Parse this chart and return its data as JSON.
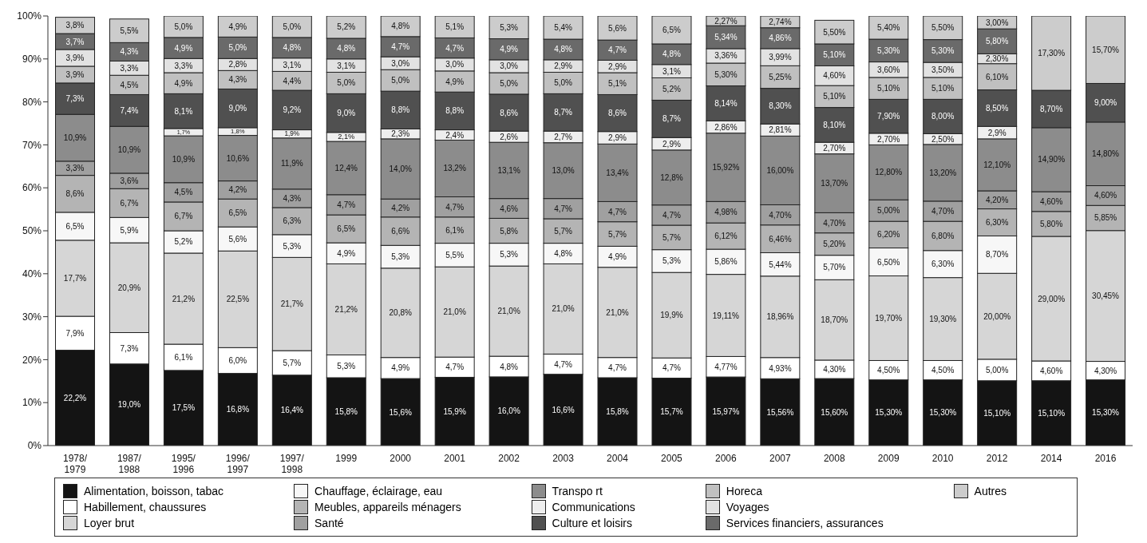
{
  "chart_data": {
    "type": "bar",
    "stacked": true,
    "legend": "bottom",
    "grid": false,
    "categories": [
      "1978/1979",
      "1987/1988",
      "1995/1996",
      "1996/1997",
      "1997/1998",
      "1999",
      "2000",
      "2001",
      "2002",
      "2003",
      "2004",
      "2005",
      "2006",
      "2007",
      "2008",
      "2009",
      "2010",
      "2012",
      "2014",
      "2016"
    ],
    "ylim": [
      0,
      100
    ],
    "yticks": [
      {
        "value": 0,
        "label": "0%"
      },
      {
        "value": 10,
        "label": "10%"
      },
      {
        "value": 20,
        "label": "20%"
      },
      {
        "value": 30,
        "label": "30%"
      },
      {
        "value": 40,
        "label": "40%"
      },
      {
        "value": 50,
        "label": "50%"
      },
      {
        "value": 60,
        "label": "60%"
      },
      {
        "value": 70,
        "label": "70%"
      },
      {
        "value": 80,
        "label": "80%"
      },
      {
        "value": 90,
        "label": "90%"
      },
      {
        "value": 100,
        "label": "100%"
      }
    ],
    "series": [
      {
        "name": "Alimentation, boisson, tabac",
        "color": "#141414",
        "values": [
          22.2,
          19.0,
          17.5,
          16.8,
          16.4,
          15.8,
          15.6,
          15.9,
          16.0,
          16.6,
          15.8,
          15.7,
          15.97,
          15.56,
          15.6,
          15.3,
          15.3,
          15.1,
          15.1,
          15.3
        ],
        "value_labels": [
          "22,2%",
          "19,0%",
          "17,5%",
          "16,8%",
          "16,4%",
          "15,8%",
          "15,6%",
          "15,9%",
          "16,0%",
          "16,6%",
          "15,8%",
          "15,7%",
          "15,97%",
          "15,56%",
          "15,60%",
          "15,30%",
          "15,30%",
          "15,10%",
          "15,10%",
          "15,30%"
        ]
      },
      {
        "name": "Habillement, chaussures",
        "color": "#ffffff",
        "values": [
          7.9,
          7.3,
          6.1,
          6.0,
          5.7,
          5.3,
          4.9,
          4.7,
          4.8,
          4.7,
          4.7,
          4.7,
          4.77,
          4.93,
          4.3,
          4.5,
          4.5,
          5.0,
          4.6,
          4.3
        ],
        "value_labels": [
          "7,9%",
          "7,3%",
          "6,1%",
          "6,0%",
          "5,7%",
          "5,3%",
          "4,9%",
          "4,7%",
          "4,8%",
          "4,7%",
          "4,7%",
          "4,7%",
          "4,77%",
          "4,93%",
          "4,30%",
          "4,50%",
          "4,50%",
          "5,00%",
          "4,60%",
          "4,30%"
        ]
      },
      {
        "name": "Loyer brut",
        "color": "#d6d6d6",
        "values": [
          17.7,
          20.9,
          21.2,
          22.5,
          21.7,
          21.2,
          20.8,
          21.0,
          21.0,
          21.0,
          21.0,
          19.9,
          19.11,
          18.96,
          18.7,
          19.7,
          19.3,
          20.0,
          29.0,
          30.45
        ],
        "value_labels": [
          "17,7%",
          "20,9%",
          "21,2%",
          "22,5%",
          "21,7%",
          "21,2%",
          "20,8%",
          "21,0%",
          "21,0%",
          "21,0%",
          "21,0%",
          "19,9%",
          "19,11%",
          "18,96%",
          "18,70%",
          "19,70%",
          "19,30%",
          "20,00%",
          "29,00%",
          "30,45%"
        ]
      },
      {
        "name": "Chauffage, éclairage, eau",
        "color": "#f7f7f7",
        "values": [
          6.5,
          5.9,
          5.2,
          5.6,
          5.3,
          4.9,
          5.3,
          5.5,
          5.3,
          4.8,
          4.9,
          5.3,
          5.86,
          5.44,
          5.7,
          6.5,
          6.3,
          8.7,
          null,
          null
        ],
        "value_labels": [
          "6,5%",
          "5,9%",
          "5,2%",
          "5,6%",
          "5,3%",
          "4,9%",
          "5,3%",
          "5,5%",
          "5,3%",
          "4,8%",
          "4,9%",
          "5,3%",
          "5,86%",
          "5,44%",
          "5,70%",
          "6,50%",
          "6,30%",
          "8,70%",
          null,
          null
        ]
      },
      {
        "name": "Meubles, appareils ménagers",
        "color": "#b4b4b4",
        "values": [
          8.6,
          6.7,
          6.7,
          6.5,
          6.3,
          6.5,
          6.6,
          6.1,
          5.8,
          5.7,
          5.7,
          5.7,
          6.12,
          6.46,
          5.2,
          6.2,
          6.8,
          6.3,
          5.8,
          5.85
        ],
        "value_labels": [
          "8,6%",
          "6,7%",
          "6,7%",
          "6,5%",
          "6,3%",
          "6,5%",
          "6,6%",
          "6,1%",
          "5,8%",
          "5,7%",
          "5,7%",
          "5,7%",
          "6,12%",
          "6,46%",
          "5,20%",
          "6,20%",
          "6,80%",
          "6,30%",
          "5,80%",
          "5,85%"
        ]
      },
      {
        "name": "Santé",
        "color": "#a0a0a0",
        "values": [
          3.3,
          3.6,
          4.5,
          4.2,
          4.3,
          4.7,
          4.2,
          4.7,
          4.6,
          4.7,
          4.7,
          4.7,
          4.98,
          4.7,
          4.7,
          5.0,
          4.7,
          4.2,
          4.6,
          4.6
        ],
        "value_labels": [
          "3,3%",
          "3,6%",
          "4,5%",
          "4,2%",
          "4,3%",
          "4,7%",
          "4,2%",
          "4,7%",
          "4,6%",
          "4,7%",
          "4,7%",
          "4,7%",
          "4,98%",
          "4,70%",
          "4,70%",
          "5,00%",
          "4,70%",
          "4,20%",
          "4,60%",
          "4,60%"
        ]
      },
      {
        "name": "Transpo rt",
        "color": "#8c8c8c",
        "values": [
          10.9,
          10.9,
          10.9,
          10.6,
          11.9,
          12.4,
          14.0,
          13.2,
          13.1,
          13.0,
          13.4,
          12.8,
          15.92,
          16.0,
          13.7,
          12.8,
          13.2,
          12.1,
          14.9,
          14.8
        ],
        "value_labels": [
          "10,9%",
          "10,9%",
          "10,9%",
          "10,6%",
          "11,9%",
          "12,4%",
          "14,0%",
          "13,2%",
          "13,1%",
          "13,0%",
          "13,4%",
          "12,8%",
          "15,92%",
          "16,00%",
          "13,70%",
          "12,80%",
          "13,20%",
          "12,10%",
          "14,90%",
          "14,80%"
        ]
      },
      {
        "name": "Communications",
        "color": "#eeeeee",
        "values": [
          null,
          null,
          1.7,
          1.8,
          1.9,
          2.1,
          2.3,
          2.4,
          2.6,
          2.7,
          2.9,
          2.9,
          2.86,
          2.81,
          2.7,
          2.7,
          2.5,
          2.9,
          null,
          null
        ],
        "value_labels": [
          null,
          null,
          "1,7%",
          "1,8%",
          "1,9%",
          "2,1%",
          "2,3%",
          "2,4%",
          "2,6%",
          "2,7%",
          "2,9%",
          "2,9%",
          "2,86%",
          "2,81%",
          "2,70%",
          "2,70%",
          "2,50%",
          "2,9%",
          null,
          null
        ]
      },
      {
        "name": "Culture et loisirs",
        "color": "#505050",
        "values": [
          7.3,
          7.4,
          8.1,
          9.0,
          9.2,
          9.0,
          8.8,
          8.8,
          8.6,
          8.7,
          8.6,
          8.7,
          8.14,
          8.3,
          8.1,
          7.9,
          8.0,
          8.5,
          8.7,
          9.0
        ],
        "value_labels": [
          "7,3%",
          "7,4%",
          "8,1%",
          "9,0%",
          "9,2%",
          "9,0%",
          "8,8%",
          "8,8%",
          "8,6%",
          "8,7%",
          "8,6%",
          "8,7%",
          "8,14%",
          "8,30%",
          "8,10%",
          "7,90%",
          "8,00%",
          "8,50%",
          "8,70%",
          "9,00%"
        ]
      },
      {
        "name": "Horeca",
        "color": "#c0c0c0",
        "values": [
          3.9,
          4.5,
          4.9,
          4.3,
          4.4,
          5.0,
          5.0,
          4.9,
          5.0,
          5.0,
          5.1,
          5.2,
          5.3,
          5.25,
          5.1,
          5.1,
          5.1,
          6.1,
          null,
          null
        ],
        "value_labels": [
          "3,9%",
          "4,5%",
          "4,9%",
          "4,3%",
          "4,4%",
          "5,0%",
          "5,0%",
          "4,9%",
          "5,0%",
          "5,0%",
          "5,1%",
          "5,2%",
          "5,30%",
          "5,25%",
          "5,10%",
          "5,10%",
          "5,10%",
          "6,10%",
          null,
          null
        ]
      },
      {
        "name": "Voyages",
        "color": "#e2e2e2",
        "values": [
          3.9,
          3.3,
          3.3,
          2.8,
          3.1,
          3.1,
          3.0,
          3.0,
          3.0,
          2.9,
          2.9,
          3.1,
          3.36,
          3.99,
          4.6,
          3.6,
          3.5,
          2.3,
          null,
          null
        ],
        "value_labels": [
          "3,9%",
          "3,3%",
          "3,3%",
          "2,8%",
          "3,1%",
          "3,1%",
          "3,0%",
          "3,0%",
          "3,0%",
          "2,9%",
          "2,9%",
          "3,1%",
          "3,36%",
          "3,99%",
          "4,60%",
          "3,60%",
          "3,50%",
          "2,30%",
          null,
          null
        ]
      },
      {
        "name": "Services financiers, assurances",
        "color": "#6a6a6a",
        "values": [
          3.7,
          4.3,
          4.9,
          5.0,
          4.8,
          4.8,
          4.7,
          4.7,
          4.9,
          4.8,
          4.7,
          4.8,
          5.34,
          4.86,
          5.1,
          5.3,
          5.3,
          5.8,
          null,
          null
        ],
        "value_labels": [
          "3,7%",
          "4,3%",
          "4,9%",
          "5,0%",
          "4,8%",
          "4,8%",
          "4,7%",
          "4,7%",
          "4,9%",
          "4,8%",
          "4,7%",
          "4,8%",
          "5,34%",
          "4,86%",
          "5,10%",
          "5,30%",
          "5,30%",
          "5,80%",
          null,
          null
        ]
      },
      {
        "name": "Autres",
        "color": "#cccccc",
        "values": [
          3.8,
          5.5,
          5.0,
          4.9,
          5.0,
          5.2,
          4.8,
          5.1,
          5.3,
          5.4,
          5.6,
          6.5,
          2.27,
          2.74,
          5.5,
          5.4,
          5.5,
          3.0,
          17.3,
          15.7
        ],
        "value_labels": [
          "3,8%",
          "5,5%",
          "5,0%",
          "4,9%",
          "5,0%",
          "5,2%",
          "4,8%",
          "5,1%",
          "5,3%",
          "5,4%",
          "5,6%",
          "6,5%",
          "2,27%",
          "2,74%",
          "5,50%",
          "5,40%",
          "5,50%",
          "3,00%",
          "17,30%",
          "15,70%"
        ]
      }
    ]
  }
}
